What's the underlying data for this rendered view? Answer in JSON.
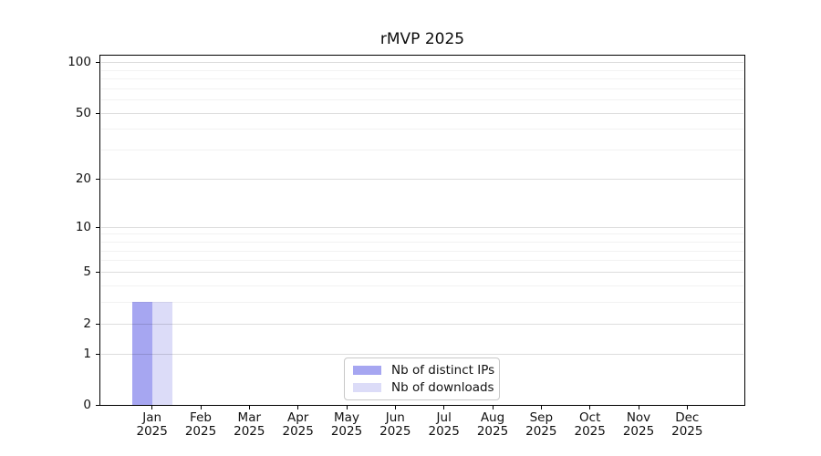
{
  "chart_data": {
    "type": "bar",
    "title": "rMVP 2025",
    "categories": [
      "Jan",
      "Feb",
      "Mar",
      "Apr",
      "May",
      "Jun",
      "Jul",
      "Aug",
      "Sep",
      "Oct",
      "Nov",
      "Dec"
    ],
    "year_label": "2025",
    "series": [
      {
        "name": "Nb of distinct IPs",
        "color": "#a6a6f1",
        "values": [
          3,
          0,
          0,
          0,
          0,
          0,
          0,
          0,
          0,
          0,
          0,
          0
        ]
      },
      {
        "name": "Nb of downloads",
        "color": "#dcdcf8",
        "values": [
          3,
          0,
          0,
          0,
          0,
          0,
          0,
          0,
          0,
          0,
          0,
          0
        ]
      }
    ],
    "y_axis": {
      "scale": "log10(1+y)",
      "ticks": [
        0,
        1,
        2,
        5,
        10,
        20,
        50,
        100
      ],
      "minor_gridlines": [
        3,
        4,
        6,
        7,
        8,
        9,
        30,
        40,
        60,
        70,
        80,
        90
      ],
      "range": [
        0,
        109
      ]
    },
    "x_axis": {
      "tick_label_format": "month over year"
    },
    "legend": {
      "position": "lower center"
    },
    "grid": "horizontal, major and minor, drawn over bars",
    "frame_color": "#000000",
    "background_color": "#ffffff"
  }
}
